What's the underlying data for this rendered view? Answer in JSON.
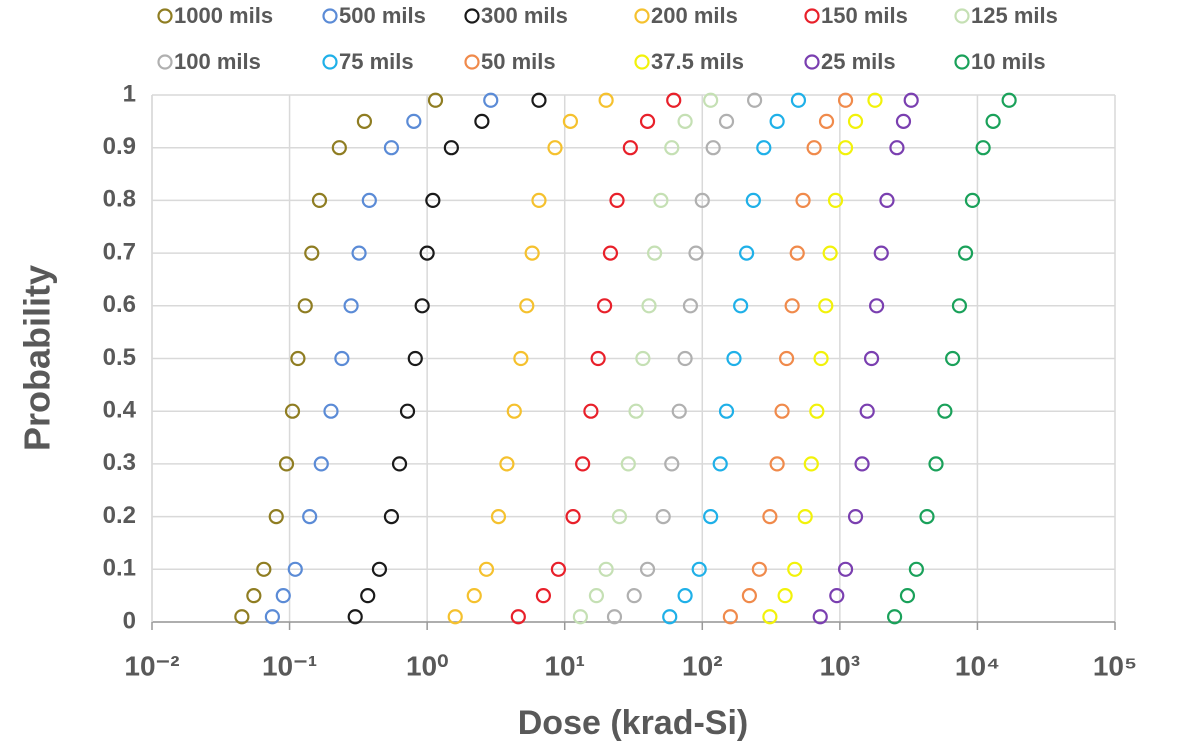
{
  "chart_data": {
    "type": "scatter",
    "xlabel": "Dose (krad-Si)",
    "ylabel": "Probability",
    "xlog": true,
    "grid": true,
    "legend": "top",
    "xlim": [
      0.01,
      100000
    ],
    "ylim": [
      0,
      1
    ],
    "xticks": [
      {
        "value": 0.01,
        "label": "10⁻²"
      },
      {
        "value": 0.1,
        "label": "10⁻¹"
      },
      {
        "value": 1,
        "label": "10⁰"
      },
      {
        "value": 10,
        "label": "10¹"
      },
      {
        "value": 100,
        "label": "10²"
      },
      {
        "value": 1000,
        "label": "10³"
      },
      {
        "value": 10000,
        "label": "10⁴"
      },
      {
        "value": 100000,
        "label": "10⁵"
      }
    ],
    "yticks": [
      0,
      0.1,
      0.2,
      0.3,
      0.4,
      0.5,
      0.6,
      0.7,
      0.8,
      0.9,
      1
    ],
    "series": [
      {
        "name": "1000 mils",
        "color": "#8f7d22",
        "x": [
          0.045,
          0.055,
          0.065,
          0.08,
          0.095,
          0.105,
          0.115,
          0.13,
          0.145,
          0.165,
          0.23,
          0.35,
          1.15
        ],
        "values": [
          0.01,
          0.05,
          0.1,
          0.2,
          0.3,
          0.4,
          0.5,
          0.6,
          0.7,
          0.8,
          0.9,
          0.95,
          0.99
        ]
      },
      {
        "name": "500 mils",
        "color": "#5b8bd6",
        "x": [
          0.075,
          0.09,
          0.11,
          0.14,
          0.17,
          0.2,
          0.24,
          0.28,
          0.32,
          0.38,
          0.55,
          0.8,
          2.9
        ],
        "values": [
          0.01,
          0.05,
          0.1,
          0.2,
          0.3,
          0.4,
          0.5,
          0.6,
          0.7,
          0.8,
          0.9,
          0.95,
          0.99
        ]
      },
      {
        "name": "300 mils",
        "color": "#1a1a1a",
        "x": [
          0.3,
          0.37,
          0.45,
          0.55,
          0.63,
          0.72,
          0.82,
          0.92,
          1.0,
          1.1,
          1.5,
          2.5,
          6.5
        ],
        "values": [
          0.01,
          0.05,
          0.1,
          0.2,
          0.3,
          0.4,
          0.5,
          0.6,
          0.7,
          0.8,
          0.9,
          0.95,
          0.99
        ]
      },
      {
        "name": "200 mils",
        "color": "#f5c12e",
        "x": [
          1.6,
          2.2,
          2.7,
          3.3,
          3.8,
          4.3,
          4.8,
          5.3,
          5.8,
          6.5,
          8.5,
          11,
          20
        ],
        "values": [
          0.01,
          0.05,
          0.1,
          0.2,
          0.3,
          0.4,
          0.5,
          0.6,
          0.7,
          0.8,
          0.9,
          0.95,
          0.99
        ]
      },
      {
        "name": "150 mils",
        "color": "#e8202a",
        "x": [
          4.6,
          7,
          9,
          11.5,
          13.5,
          15.5,
          17.5,
          19.5,
          21.5,
          24,
          30,
          40,
          62
        ],
        "values": [
          0.01,
          0.05,
          0.1,
          0.2,
          0.3,
          0.4,
          0.5,
          0.6,
          0.7,
          0.8,
          0.9,
          0.95,
          0.99
        ]
      },
      {
        "name": "125 mils",
        "color": "#c5e0b4",
        "x": [
          13,
          17,
          20,
          25,
          29,
          33,
          37,
          41,
          45,
          50,
          60,
          75,
          115
        ],
        "values": [
          0.01,
          0.05,
          0.1,
          0.2,
          0.3,
          0.4,
          0.5,
          0.6,
          0.7,
          0.8,
          0.9,
          0.95,
          0.99
        ]
      },
      {
        "name": "100 mils",
        "color": "#b0b0b0",
        "x": [
          23,
          32,
          40,
          52,
          60,
          68,
          75,
          82,
          90,
          100,
          120,
          150,
          240
        ],
        "values": [
          0.01,
          0.05,
          0.1,
          0.2,
          0.3,
          0.4,
          0.5,
          0.6,
          0.7,
          0.8,
          0.9,
          0.95,
          0.99
        ]
      },
      {
        "name": "75 mils",
        "color": "#1fb0e8",
        "x": [
          58,
          75,
          95,
          115,
          135,
          150,
          170,
          190,
          210,
          235,
          280,
          350,
          500
        ],
        "values": [
          0.01,
          0.05,
          0.1,
          0.2,
          0.3,
          0.4,
          0.5,
          0.6,
          0.7,
          0.8,
          0.9,
          0.95,
          0.99
        ]
      },
      {
        "name": "50 mils",
        "color": "#f08a4b",
        "x": [
          160,
          220,
          260,
          310,
          350,
          380,
          410,
          450,
          490,
          540,
          650,
          800,
          1100
        ],
        "values": [
          0.01,
          0.05,
          0.1,
          0.2,
          0.3,
          0.4,
          0.5,
          0.6,
          0.7,
          0.8,
          0.9,
          0.95,
          0.99
        ]
      },
      {
        "name": "37.5 mils",
        "color": "#f2f20a",
        "x": [
          310,
          400,
          470,
          560,
          620,
          680,
          730,
          790,
          850,
          930,
          1100,
          1300,
          1800
        ],
        "values": [
          0.01,
          0.05,
          0.1,
          0.2,
          0.3,
          0.4,
          0.5,
          0.6,
          0.7,
          0.8,
          0.9,
          0.95,
          0.99
        ]
      },
      {
        "name": "25 mils",
        "color": "#7a3fb0",
        "x": [
          720,
          950,
          1100,
          1300,
          1450,
          1580,
          1700,
          1850,
          2000,
          2200,
          2600,
          2900,
          3300
        ],
        "values": [
          0.01,
          0.05,
          0.1,
          0.2,
          0.3,
          0.4,
          0.5,
          0.6,
          0.7,
          0.8,
          0.9,
          0.95,
          0.99
        ]
      },
      {
        "name": "10 mils",
        "color": "#1aa15a",
        "x": [
          2500,
          3100,
          3600,
          4300,
          5000,
          5800,
          6600,
          7400,
          8200,
          9200,
          11000,
          13000,
          17000
        ],
        "values": [
          0.01,
          0.05,
          0.1,
          0.2,
          0.3,
          0.4,
          0.5,
          0.6,
          0.7,
          0.8,
          0.9,
          0.95,
          0.99
        ]
      }
    ]
  }
}
